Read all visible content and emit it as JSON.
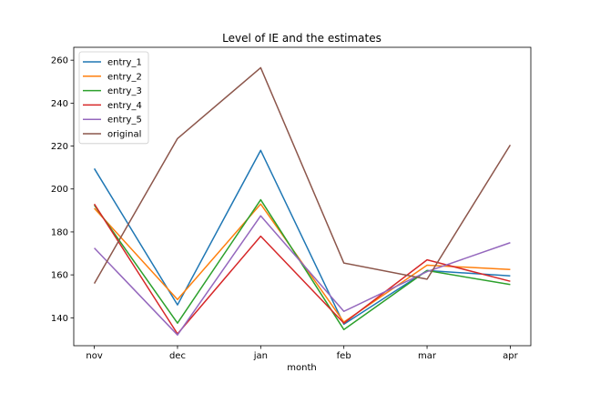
{
  "chart_data": {
    "type": "line",
    "title": "Level of IE and the estimates",
    "xlabel": "month",
    "ylabel": "",
    "categories": [
      "nov",
      "dec",
      "jan",
      "feb",
      "mar",
      "apr"
    ],
    "ylim": [
      127,
      266
    ],
    "yticks": [
      140,
      160,
      180,
      200,
      220,
      240,
      260
    ],
    "grid": false,
    "legend": "top-left",
    "series": [
      {
        "name": "entry_1",
        "color": "#1f77b4",
        "values": [
          209.5,
          146,
          218,
          137,
          162,
          159.5
        ]
      },
      {
        "name": "entry_2",
        "color": "#ff7f0e",
        "values": [
          191,
          148.5,
          193,
          138,
          164.5,
          162.5
        ]
      },
      {
        "name": "entry_3",
        "color": "#2ca02c",
        "values": [
          192.5,
          137.5,
          195,
          134.5,
          162,
          155.5
        ]
      },
      {
        "name": "entry_4",
        "color": "#d62728",
        "values": [
          193,
          132.5,
          178,
          137.5,
          167,
          157
        ]
      },
      {
        "name": "entry_5",
        "color": "#9467bd",
        "values": [
          172.5,
          132,
          187.5,
          143,
          161.5,
          175
        ]
      },
      {
        "name": "original",
        "color": "#8c564b",
        "values": [
          156,
          223.5,
          256.5,
          165.5,
          158,
          220.5
        ]
      }
    ]
  }
}
